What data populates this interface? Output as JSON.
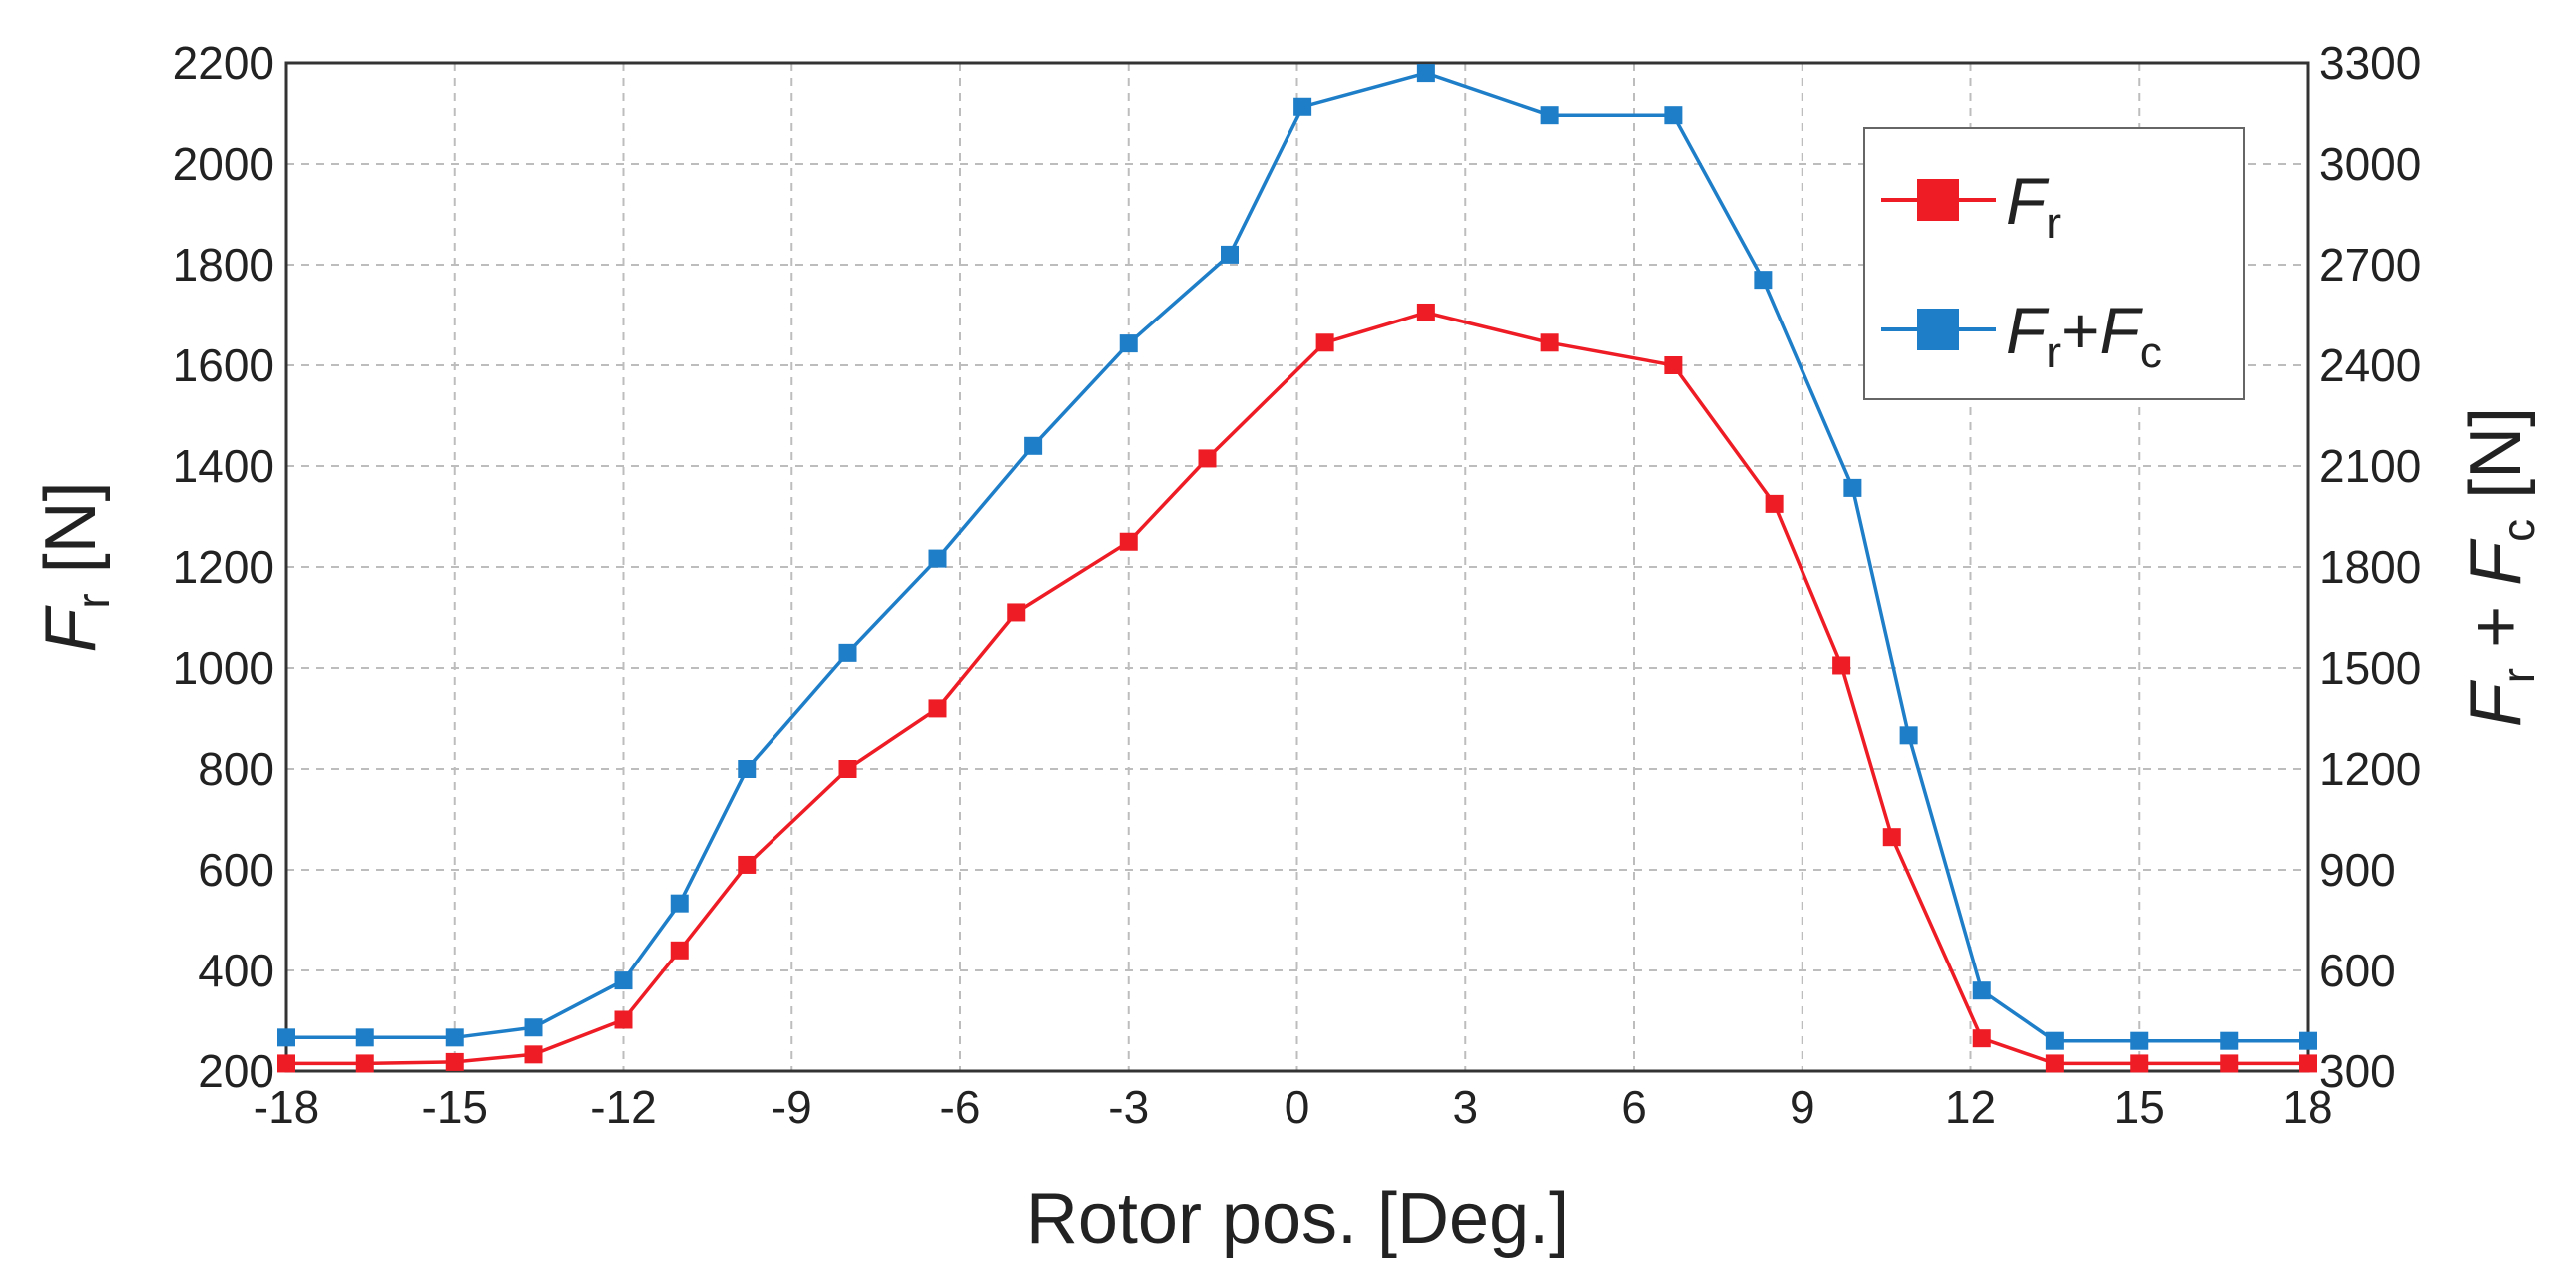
{
  "chart_data": {
    "type": "line",
    "xlabel": "Rotor pos. [Deg.]",
    "ylabel_left": {
      "main": "F",
      "sub": "r",
      "unit": " [N]"
    },
    "ylabel_right": {
      "main1": "F",
      "sub1": "r",
      "plus": " + ",
      "main2": "F",
      "sub2": "c",
      "unit": " [N]"
    },
    "xlim": [
      -18,
      18
    ],
    "ylim_left": [
      200,
      2200
    ],
    "ylim_right": [
      300,
      3300
    ],
    "xticks": [
      -18,
      -15,
      -12,
      -9,
      -6,
      -3,
      0,
      3,
      6,
      9,
      12,
      15,
      18
    ],
    "yticks_left": [
      200,
      400,
      600,
      800,
      1000,
      1200,
      1400,
      1600,
      1800,
      2000,
      2200
    ],
    "yticks_right": [
      300,
      600,
      900,
      1200,
      1500,
      1800,
      2100,
      2400,
      2700,
      3000,
      3300
    ],
    "grid": true,
    "legend_position": "top-right",
    "series": [
      {
        "legend_label": {
          "main": "F",
          "sub": "r"
        },
        "axis": "left",
        "color": "#ee1c25",
        "points": [
          [
            -18,
            215
          ],
          [
            -16.6,
            215
          ],
          [
            -15,
            218
          ],
          [
            -13.6,
            233
          ],
          [
            -12,
            302
          ],
          [
            -11,
            440
          ],
          [
            -9.8,
            610
          ],
          [
            -8,
            800
          ],
          [
            -6.4,
            920
          ],
          [
            -5,
            1110
          ],
          [
            -3,
            1250
          ],
          [
            -1.6,
            1415
          ],
          [
            0.5,
            1645
          ],
          [
            2.3,
            1705
          ],
          [
            4.5,
            1645
          ],
          [
            6.7,
            1600
          ],
          [
            8.5,
            1325
          ],
          [
            9.7,
            1005
          ],
          [
            10.6,
            665
          ],
          [
            12.2,
            265
          ],
          [
            13.5,
            215
          ],
          [
            15,
            215
          ],
          [
            16.6,
            215
          ],
          [
            18,
            215
          ]
        ]
      },
      {
        "legend_label": {
          "main1": "F",
          "sub1": "r",
          "plus": "+",
          "main2": "F",
          "sub2": "c"
        },
        "axis": "right",
        "color": "#1e7ec8",
        "points": [
          [
            -18,
            400
          ],
          [
            -16.6,
            400
          ],
          [
            -15,
            400
          ],
          [
            -13.6,
            430
          ],
          [
            -12,
            570
          ],
          [
            -11,
            800
          ],
          [
            -9.8,
            1200
          ],
          [
            -8,
            1545
          ],
          [
            -6.4,
            1825
          ],
          [
            -4.7,
            2160
          ],
          [
            -3,
            2465
          ],
          [
            -1.2,
            2730
          ],
          [
            0.1,
            3170
          ],
          [
            2.3,
            3270
          ],
          [
            4.5,
            3145
          ],
          [
            6.7,
            3145
          ],
          [
            8.3,
            2655
          ],
          [
            9.9,
            2035
          ],
          [
            10.9,
            1300
          ],
          [
            12.2,
            540
          ],
          [
            13.5,
            390
          ],
          [
            15,
            390
          ],
          [
            16.6,
            390
          ],
          [
            18,
            390
          ]
        ]
      }
    ]
  }
}
